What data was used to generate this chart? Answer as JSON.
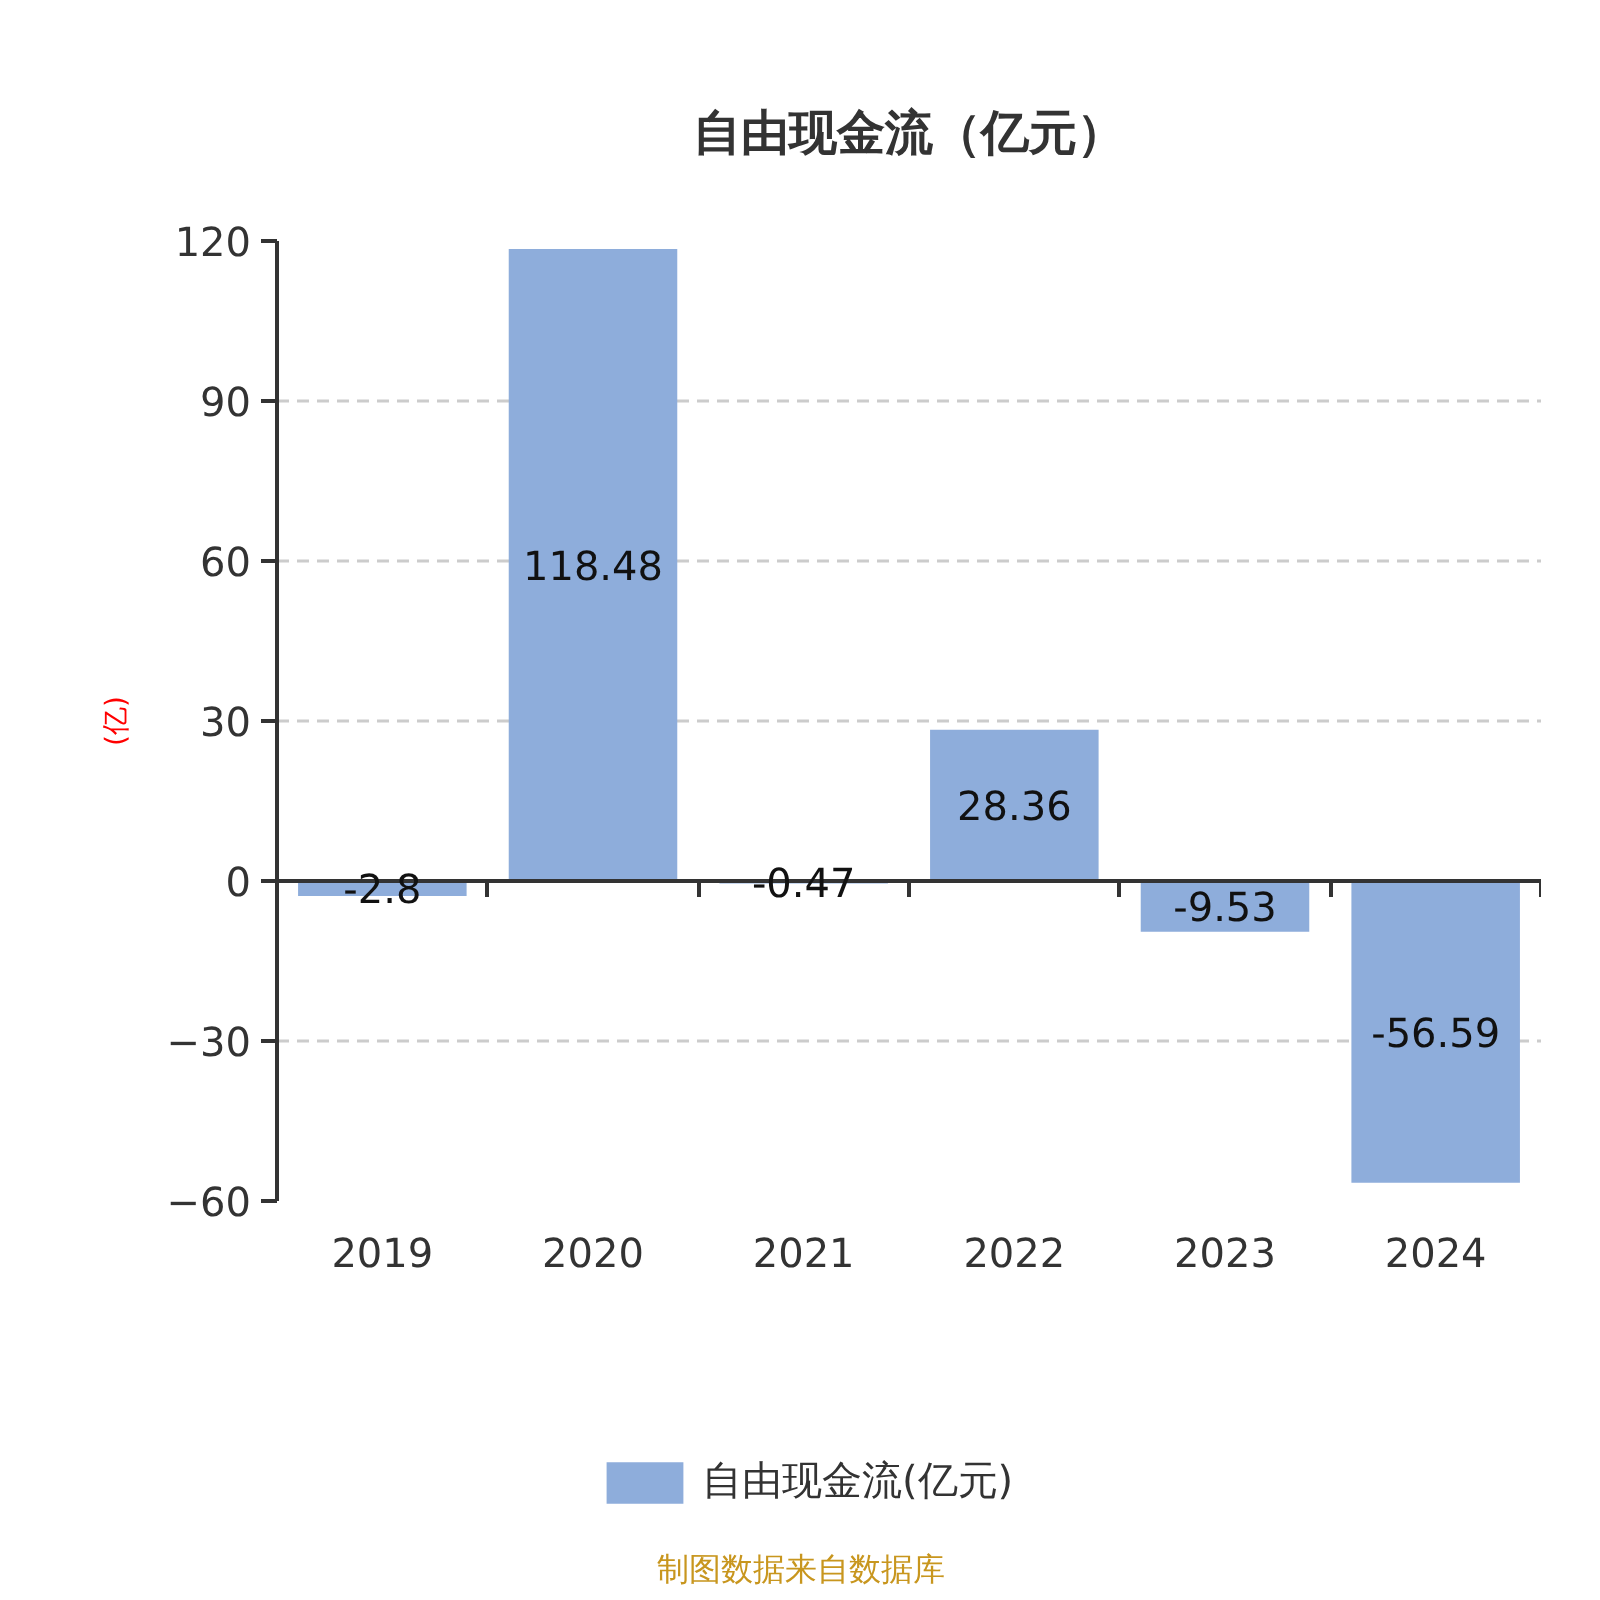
{
  "chart_data": {
    "type": "bar",
    "title": "自由现金流（亿元）",
    "ylabel": "(亿)",
    "categories": [
      "2019",
      "2020",
      "2021",
      "2022",
      "2023",
      "2024"
    ],
    "series": [
      {
        "name": "自由现金流(亿元)",
        "color": "#8eaddb",
        "values": [
          -2.8,
          118.48,
          -0.47,
          28.36,
          -9.53,
          -56.59
        ]
      }
    ],
    "ylim": [
      -60,
      120
    ],
    "yticks": [
      -60,
      -30,
      0,
      30,
      60,
      90,
      120
    ],
    "grid": "y",
    "legend": "bottom",
    "data_labels": true,
    "annotations": [
      "制图数据来自数据库"
    ]
  }
}
